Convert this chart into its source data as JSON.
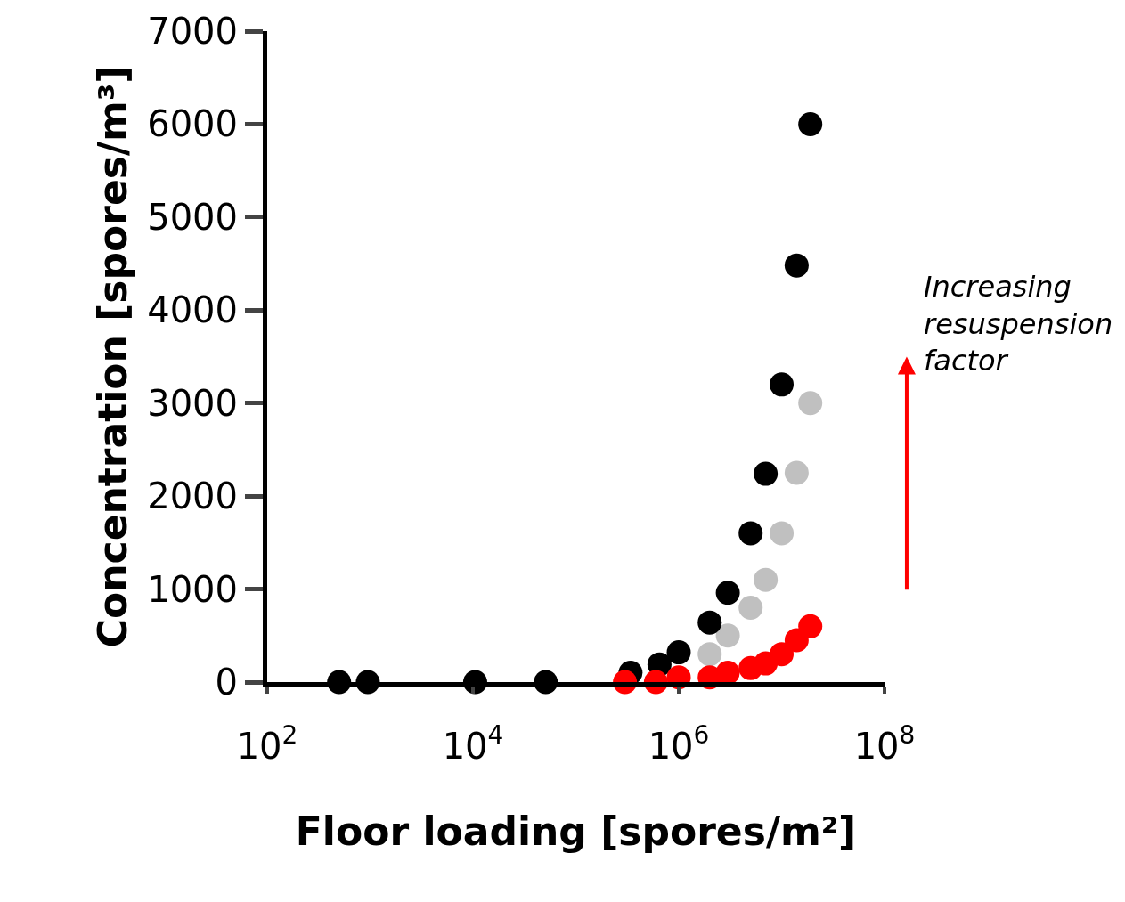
{
  "chart_data": {
    "type": "scatter",
    "xlabel": "Floor loading [spores/m²]",
    "ylabel": "Concentration [spores/m³]",
    "log": "x",
    "marker": "circle",
    "xlim": [
      100,
      100000000
    ],
    "xticks": [
      {
        "value": 100,
        "label": "10$^{2}$"
      },
      {
        "value": 10000,
        "label": "10$^{4}$"
      },
      {
        "value": 1000000,
        "label": "10$^{6}$"
      },
      {
        "value": 100000000,
        "label": "10$^{8}$"
      }
    ],
    "ylim": [
      0,
      7000
    ],
    "yticks": [
      0,
      1000,
      2000,
      3000,
      4000,
      5000,
      6000,
      7000
    ],
    "series": [
      {
        "color": "#c0c0c0",
        "x": [
          2000000,
          3000000,
          5000000,
          7000000,
          10000000,
          14000000,
          19000000
        ],
        "values": [
          300,
          500,
          800,
          1100,
          1600,
          2250,
          3000
        ]
      },
      {
        "color": "#000000",
        "x": [
          500,
          950,
          10500,
          51000,
          340000,
          650000,
          1000000,
          2000000,
          3000000,
          5000000,
          7000000,
          10000000,
          14000000,
          19000000
        ],
        "values": [
          0,
          0,
          0,
          0,
          100,
          190,
          320,
          640,
          960,
          1600,
          2240,
          3200,
          4480,
          6000
        ]
      },
      {
        "color": "#ff0000",
        "x": [
          300000,
          600000,
          1000000,
          2000000,
          3000000,
          5000000,
          7000000,
          10000000,
          14000000,
          19000000
        ],
        "values": [
          0,
          0,
          50,
          50,
          100,
          150,
          200,
          300,
          450,
          600
        ]
      }
    ],
    "annotations": [
      "Increasing resuspension factor"
    ]
  }
}
